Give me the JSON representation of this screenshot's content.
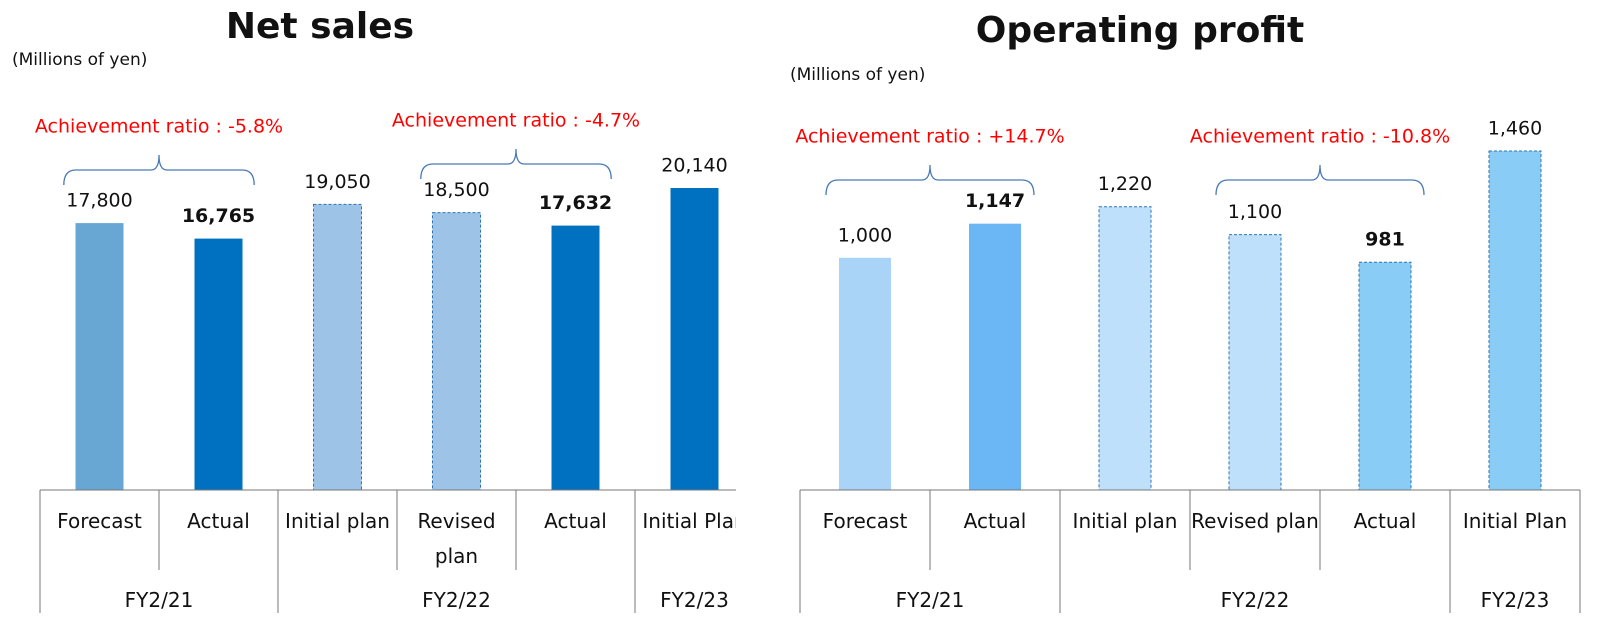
{
  "chart_data": [
    {
      "type": "bar",
      "title": "Net sales",
      "unit_label": "(Millions of yen)",
      "groups": [
        {
          "label": "FY2/21",
          "categories": [
            "Forecast",
            "Actual"
          ]
        },
        {
          "label": "FY2/22",
          "categories": [
            "Initial plan",
            "Revised plan",
            "Actual"
          ]
        },
        {
          "label": "FY2/23",
          "categories": [
            "Initial Plan"
          ]
        }
      ],
      "values": [
        17800,
        16765,
        19050,
        18500,
        17632,
        20140
      ],
      "value_labels": [
        "17,800",
        "16,765",
        "19,050",
        "18,500",
        "17,632",
        "20,140"
      ],
      "colors": [
        "#68a6d4",
        "#0070c0",
        "#9dc3e6",
        "#9dc3e6",
        "#0070c0",
        "#0070c0"
      ],
      "dashed": [
        false,
        false,
        true,
        true,
        false,
        false
      ],
      "bold_labels": [
        false,
        true,
        false,
        false,
        true,
        false
      ],
      "annotations": [
        "Achievement ratio : -5.8%",
        "Achievement ratio : -4.7%"
      ]
    },
    {
      "type": "bar",
      "title": "Operating profit",
      "unit_label": "(Millions of yen)",
      "groups": [
        {
          "label": "FY2/21",
          "categories": [
            "Forecast",
            "Actual"
          ]
        },
        {
          "label": "FY2/22",
          "categories": [
            "Initial plan",
            "Revised plan",
            "Actual"
          ]
        },
        {
          "label": "FY2/23",
          "categories": [
            "Initial Plan"
          ]
        }
      ],
      "values": [
        1000,
        1147,
        1220,
        1100,
        981,
        1460
      ],
      "value_labels": [
        "1,000",
        "1,147",
        "1,220",
        "1,100",
        "981",
        "1,460"
      ],
      "colors": [
        "#a9d3f7",
        "#6bb6f5",
        "#bfe0fb",
        "#bfe0fb",
        "#89cdf7",
        "#89cdf7"
      ],
      "dashed": [
        false,
        false,
        true,
        true,
        true,
        true
      ],
      "bold_labels": [
        false,
        true,
        false,
        false,
        true,
        false
      ],
      "annotations": [
        "Achievement ratio : +14.7%",
        "Achievement ratio : -10.8%"
      ]
    }
  ]
}
